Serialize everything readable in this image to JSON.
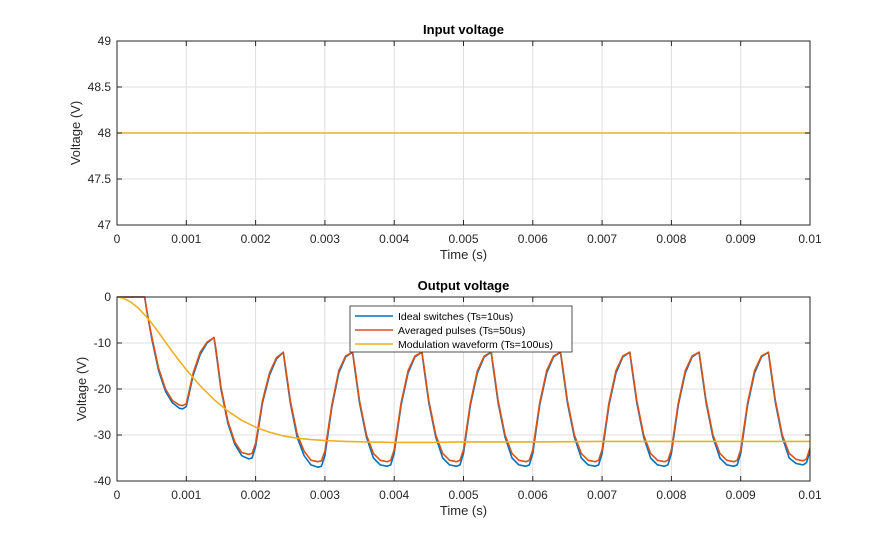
{
  "chart_data": [
    {
      "type": "line",
      "title": "Input voltage",
      "xlabel": "Time (s)",
      "ylabel": "Voltage (V)",
      "xlim": [
        0,
        0.01
      ],
      "ylim": [
        47,
        49
      ],
      "xticks": [
        "0",
        "0.001",
        "0.002",
        "0.003",
        "0.004",
        "0.005",
        "0.006",
        "0.007",
        "0.008",
        "0.009",
        "0.01"
      ],
      "yticks": [
        "47",
        "47.5",
        "48",
        "48.5",
        "49"
      ],
      "grid": true,
      "series": [
        {
          "color": "#EDB120",
          "x": [
            0,
            0.01
          ],
          "y": [
            48,
            48
          ]
        }
      ]
    },
    {
      "type": "line",
      "title": "Output voltage",
      "xlabel": "Time (s)",
      "ylabel": "Voltage (V)",
      "xlim": [
        0,
        0.01
      ],
      "ylim": [
        -40,
        0
      ],
      "xticks": [
        "0",
        "0.001",
        "0.002",
        "0.003",
        "0.004",
        "0.005",
        "0.006",
        "0.007",
        "0.008",
        "0.009",
        "0.01"
      ],
      "yticks": [
        "-40",
        "-30",
        "-20",
        "-10",
        "0"
      ],
      "grid": true,
      "legend_position": "top-center",
      "series": [
        {
          "name": "Ideal switches (Ts=10us)",
          "color": "#0072BD",
          "x": [
            0,
            0.0004,
            0.00043,
            0.0005,
            0.0006,
            0.0007,
            0.0008,
            0.0009,
            0.00095,
            0.001,
            0.0011,
            0.0012,
            0.0013,
            0.0014,
            0.00143,
            0.0015,
            0.0016,
            0.0017,
            0.0018,
            0.0019,
            0.00195,
            0.002,
            0.0021,
            0.0022,
            0.0023,
            0.0024,
            0.00243,
            0.0025,
            0.0026,
            0.0027,
            0.0028,
            0.0029,
            0.00295,
            0.003,
            0.0031,
            0.0032,
            0.0033,
            0.0034,
            0.00343,
            0.0035,
            0.0036,
            0.0037,
            0.0038,
            0.0039,
            0.00395,
            0.004,
            0.0041,
            0.0042,
            0.0043,
            0.0044,
            0.00443,
            0.0045,
            0.0046,
            0.0047,
            0.0048,
            0.0049,
            0.00495,
            0.005,
            0.0051,
            0.0052,
            0.0053,
            0.0054,
            0.00543,
            0.0055,
            0.0056,
            0.0057,
            0.0058,
            0.0059,
            0.00595,
            0.006,
            0.0061,
            0.0062,
            0.0063,
            0.0064,
            0.00643,
            0.0065,
            0.0066,
            0.0067,
            0.0068,
            0.0069,
            0.00695,
            0.007,
            0.0071,
            0.0072,
            0.0073,
            0.0074,
            0.00743,
            0.0075,
            0.0076,
            0.0077,
            0.0078,
            0.0079,
            0.00795,
            0.008,
            0.0081,
            0.0082,
            0.0083,
            0.0084,
            0.00843,
            0.0085,
            0.0086,
            0.0087,
            0.0088,
            0.0089,
            0.00895,
            0.009,
            0.0091,
            0.0092,
            0.0093,
            0.0094,
            0.00943,
            0.0095,
            0.0096,
            0.0097,
            0.0098,
            0.0099,
            0.00995,
            0.01
          ],
          "y": [
            0,
            0,
            -3,
            -9,
            -16,
            -20.5,
            -23,
            -24.2,
            -24.3,
            -23.8,
            -17,
            -12.5,
            -10,
            -8.8,
            -12,
            -20,
            -27.5,
            -32,
            -34.5,
            -35.2,
            -35,
            -32.5,
            -23,
            -17,
            -13.5,
            -12,
            -15.5,
            -23,
            -30.5,
            -34.5,
            -36.5,
            -37,
            -36.8,
            -34.5,
            -24,
            -16.5,
            -13,
            -12,
            -15.5,
            -23,
            -30.5,
            -35,
            -36.5,
            -36.8,
            -36.5,
            -34,
            -23.5,
            -16.5,
            -13,
            -12,
            -15.5,
            -23,
            -30.5,
            -35,
            -36.5,
            -36.8,
            -36.5,
            -34,
            -23.5,
            -16.5,
            -13,
            -12,
            -15.5,
            -23,
            -30.5,
            -35,
            -36.5,
            -36.8,
            -36.5,
            -34,
            -23.5,
            -16.5,
            -13,
            -12,
            -15.5,
            -23,
            -30.5,
            -35,
            -36.5,
            -36.8,
            -36.5,
            -34,
            -23.5,
            -16.5,
            -13,
            -12,
            -15.5,
            -23,
            -30.5,
            -35,
            -36.5,
            -36.8,
            -36.5,
            -34,
            -23.5,
            -16.5,
            -13,
            -12,
            -15.5,
            -23,
            -30.5,
            -35,
            -36.5,
            -36.8,
            -36.5,
            -34,
            -23.5,
            -16.5,
            -13,
            -12,
            -15.5,
            -23,
            -30.5,
            -35,
            -36.2,
            -36.5,
            -36,
            -33.5
          ]
        },
        {
          "name": "Averaged pulses (Ts=50us)",
          "color": "#D95319",
          "x": [
            0,
            0.0004,
            0.00043,
            0.0005,
            0.0006,
            0.0007,
            0.0008,
            0.0009,
            0.00095,
            0.001,
            0.0011,
            0.0012,
            0.0013,
            0.0014,
            0.00143,
            0.0015,
            0.0016,
            0.0017,
            0.0018,
            0.0019,
            0.00195,
            0.002,
            0.0021,
            0.0022,
            0.0023,
            0.0024,
            0.00243,
            0.0025,
            0.0026,
            0.0027,
            0.0028,
            0.0029,
            0.00295,
            0.003,
            0.0031,
            0.0032,
            0.0033,
            0.0034,
            0.00343,
            0.0035,
            0.0036,
            0.0037,
            0.0038,
            0.0039,
            0.00395,
            0.004,
            0.0041,
            0.0042,
            0.0043,
            0.0044,
            0.00443,
            0.0045,
            0.0046,
            0.0047,
            0.0048,
            0.0049,
            0.00495,
            0.005,
            0.0051,
            0.0052,
            0.0053,
            0.0054,
            0.00543,
            0.0055,
            0.0056,
            0.0057,
            0.0058,
            0.0059,
            0.00595,
            0.006,
            0.0061,
            0.0062,
            0.0063,
            0.0064,
            0.00643,
            0.0065,
            0.0066,
            0.0067,
            0.0068,
            0.0069,
            0.00695,
            0.007,
            0.0071,
            0.0072,
            0.0073,
            0.0074,
            0.00743,
            0.0075,
            0.0076,
            0.0077,
            0.0078,
            0.0079,
            0.00795,
            0.008,
            0.0081,
            0.0082,
            0.0083,
            0.0084,
            0.00843,
            0.0085,
            0.0086,
            0.0087,
            0.0088,
            0.0089,
            0.00895,
            0.009,
            0.0091,
            0.0092,
            0.0093,
            0.0094,
            0.00943,
            0.0095,
            0.0096,
            0.0097,
            0.0098,
            0.0099,
            0.00995,
            0.01
          ],
          "y": [
            0,
            0,
            -3,
            -8.5,
            -15.5,
            -20,
            -22.5,
            -23.5,
            -23.6,
            -23.2,
            -16.5,
            -12,
            -9.8,
            -8.8,
            -11.5,
            -19.5,
            -27,
            -31.5,
            -33.8,
            -34.2,
            -34,
            -31.8,
            -22.5,
            -16.5,
            -13.2,
            -12,
            -15,
            -22.5,
            -29.8,
            -33.5,
            -35.5,
            -35.8,
            -35.6,
            -33.5,
            -23.5,
            -16,
            -12.8,
            -12,
            -15,
            -22.5,
            -30,
            -34,
            -35.5,
            -35.8,
            -35.5,
            -33.2,
            -23,
            -16,
            -12.8,
            -12,
            -15,
            -22.5,
            -30,
            -34,
            -35.5,
            -35.8,
            -35.5,
            -33.2,
            -23,
            -16,
            -12.8,
            -12,
            -15,
            -22.5,
            -30,
            -34,
            -35.5,
            -35.8,
            -35.5,
            -33.2,
            -23,
            -16,
            -12.8,
            -12,
            -15,
            -22.5,
            -30,
            -34,
            -35.5,
            -35.8,
            -35.5,
            -33.2,
            -23,
            -16,
            -12.8,
            -12,
            -15,
            -22.5,
            -30,
            -34,
            -35.5,
            -35.8,
            -35.5,
            -33.2,
            -23,
            -16,
            -12.8,
            -12,
            -15,
            -22.5,
            -30,
            -34,
            -35.5,
            -35.8,
            -35.5,
            -33.2,
            -23,
            -16,
            -12.8,
            -12,
            -15,
            -22.5,
            -30,
            -34,
            -35.3,
            -35.6,
            -35.2,
            -32.8
          ]
        },
        {
          "name": "Modulation waveform (Ts=100us)",
          "color": "#EDB120",
          "x": [
            0,
            0.0001,
            0.0002,
            0.0003,
            0.0004,
            0.0005,
            0.0006,
            0.0007,
            0.0008,
            0.0009,
            0.001,
            0.0012,
            0.0014,
            0.0016,
            0.0018,
            0.002,
            0.0022,
            0.0024,
            0.0026,
            0.0028,
            0.003,
            0.0033,
            0.0036,
            0.004,
            0.0045,
            0.005,
            0.006,
            0.007,
            0.008,
            0.009,
            0.01
          ],
          "y": [
            0,
            -0.3,
            -1.1,
            -2.3,
            -3.9,
            -5.7,
            -7.7,
            -9.8,
            -11.9,
            -13.9,
            -15.8,
            -19.3,
            -22.3,
            -24.8,
            -26.8,
            -28.3,
            -29.4,
            -30.2,
            -30.7,
            -31.0,
            -31.2,
            -31.4,
            -31.5,
            -31.6,
            -31.6,
            -31.5,
            -31.5,
            -31.4,
            -31.4,
            -31.4,
            -31.4
          ]
        }
      ]
    }
  ]
}
